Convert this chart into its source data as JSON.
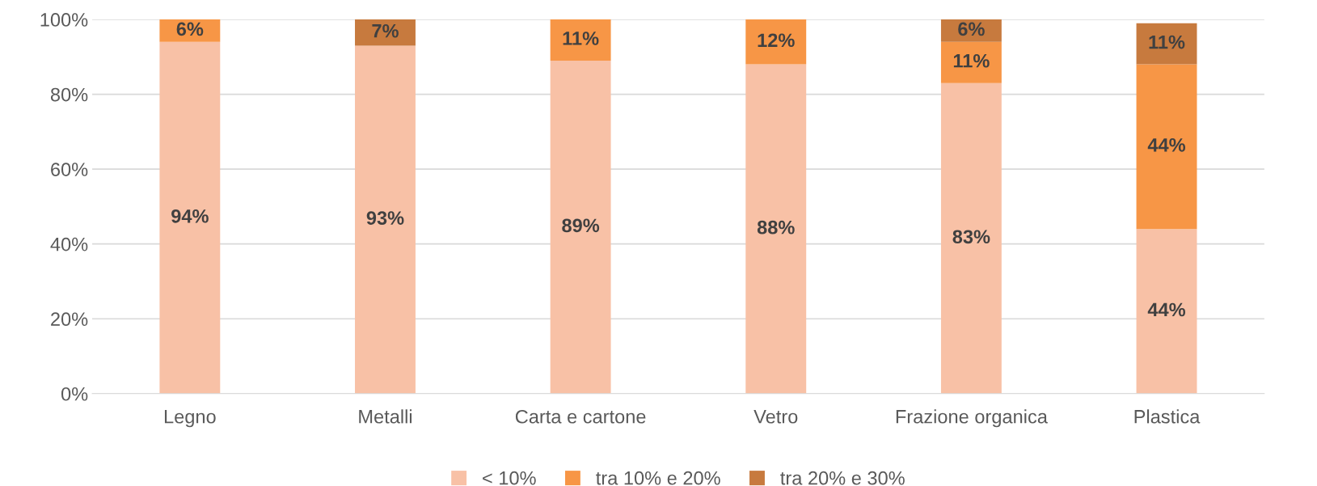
{
  "chart_data": {
    "type": "bar",
    "stacked": true,
    "categories": [
      "Legno",
      "Metalli",
      "Carta e cartone",
      "Vetro",
      "Frazione organica",
      "Plastica"
    ],
    "series": [
      {
        "name": "< 10%",
        "color": "#f8c1a6",
        "values": [
          94,
          93,
          89,
          88,
          83,
          44
        ],
        "value_labels": [
          "94%",
          "93%",
          "89%",
          "88%",
          "83%",
          "44%"
        ]
      },
      {
        "name": "tra 10% e 20%",
        "color": "#f79646",
        "values": [
          6,
          null,
          11,
          12,
          11,
          44
        ],
        "value_labels": [
          "6%",
          null,
          "11%",
          "12%",
          "11%",
          "44%"
        ]
      },
      {
        "name": "tra 20% e 30%",
        "color": "#c77a3e",
        "values": [
          null,
          7,
          null,
          null,
          6,
          11
        ],
        "value_labels": [
          null,
          "7%",
          null,
          null,
          "6%",
          "11%"
        ]
      }
    ],
    "ylim": [
      0,
      100
    ],
    "yticks": [
      {
        "value": 0,
        "label": "0%"
      },
      {
        "value": 20,
        "label": "20%"
      },
      {
        "value": 40,
        "label": "40%"
      },
      {
        "value": 60,
        "label": "60%"
      },
      {
        "value": 80,
        "label": "80%"
      },
      {
        "value": 100,
        "label": "100%"
      }
    ],
    "grid": "y",
    "legend": "bottom"
  }
}
